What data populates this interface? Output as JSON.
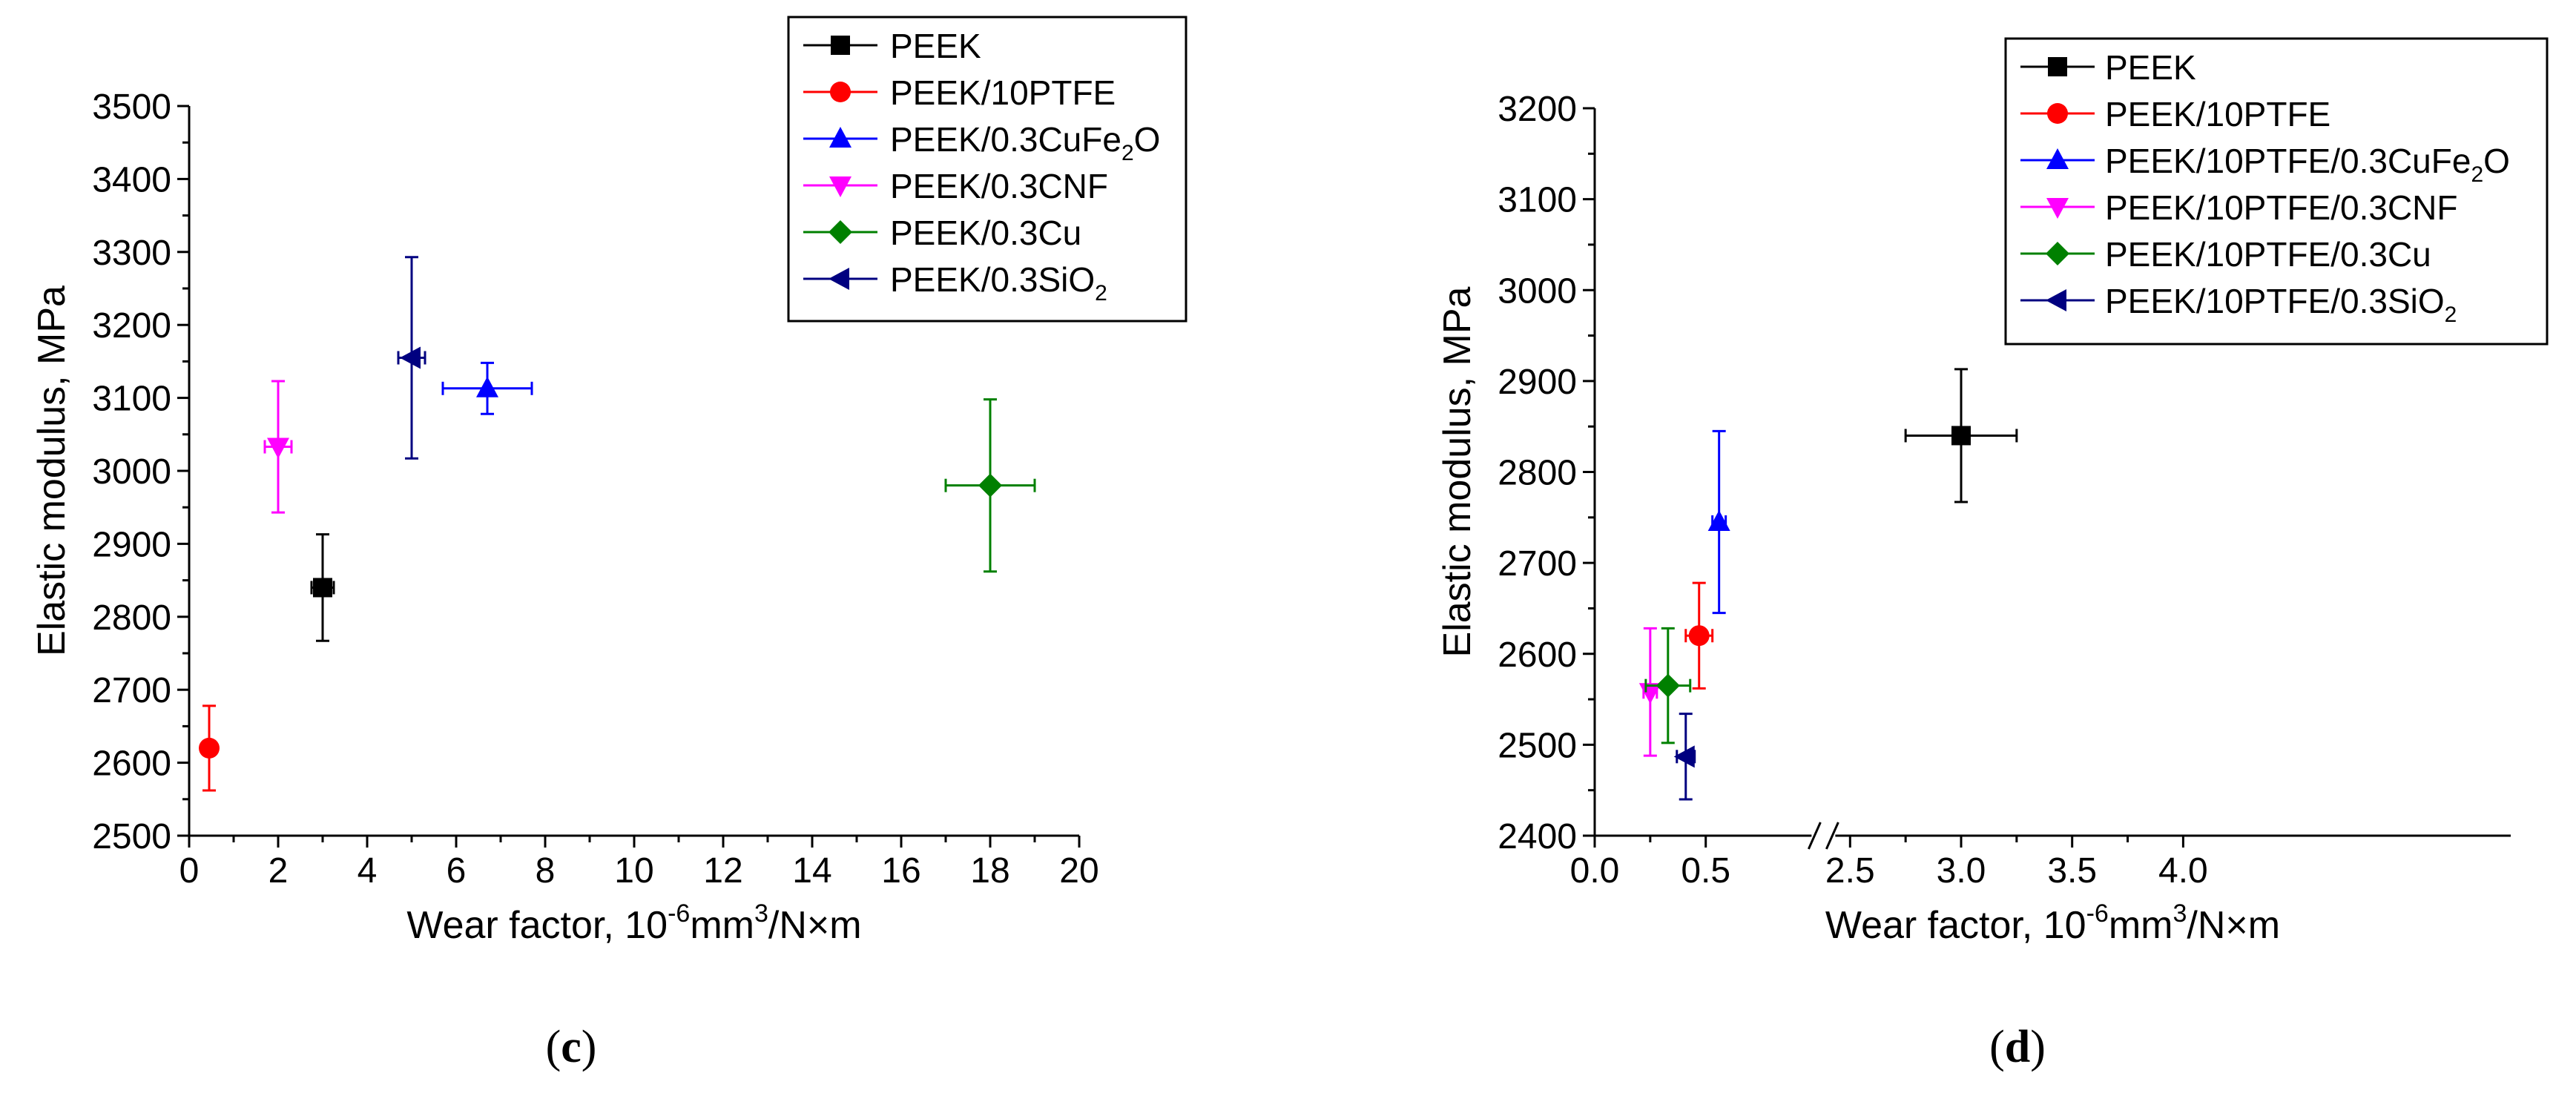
{
  "chart_data": [
    {
      "type": "scatter",
      "panel_label": "c",
      "xlabel": {
        "text": "Wear factor, 10",
        "sup": "-6",
        "mid": "mm",
        "sup2": "3",
        "tail": "/N×m"
      },
      "ylabel": "Elastic modulus, MPa",
      "xlim": [
        0,
        20
      ],
      "ylim": [
        2500,
        3500
      ],
      "xticks": [
        "0",
        "2",
        "4",
        "6",
        "8",
        "10",
        "12",
        "14",
        "16",
        "18",
        "20"
      ],
      "yticks": [
        "2500",
        "2600",
        "2700",
        "2800",
        "2900",
        "3000",
        "3100",
        "3200",
        "3300",
        "3400",
        "3500"
      ],
      "legend_position": "top-right",
      "series": [
        {
          "name": "PEEK",
          "name_parts": [
            "PEEK"
          ],
          "color": "#000000",
          "marker": "square",
          "x": 3.0,
          "y": 2840,
          "xerr": 0.25,
          "yerr": 73
        },
        {
          "name": "PEEK/10PTFE",
          "name_parts": [
            "PEEK/10PTFE"
          ],
          "color": "#ff0000",
          "marker": "circle",
          "x": 0.45,
          "y": 2620,
          "xerr": 0.05,
          "yerr": 58
        },
        {
          "name": "PEEK/0.3CuFe2O",
          "name_parts": [
            "PEEK/0.3CuFe",
            "2",
            "O"
          ],
          "color": "#0000ff",
          "marker": "triangle-up",
          "x": 6.7,
          "y": 3113,
          "xerr": 1.0,
          "yerr": 35
        },
        {
          "name": "PEEK/0.3CNF",
          "name_parts": [
            "PEEK/0.3CNF"
          ],
          "color": "#ff00ff",
          "marker": "triangle-down",
          "x": 2.0,
          "y": 3033,
          "xerr": 0.3,
          "yerr": 90
        },
        {
          "name": "PEEK/0.3Cu",
          "name_parts": [
            "PEEK/0.3Cu"
          ],
          "color": "#008000",
          "marker": "diamond",
          "x": 18.0,
          "y": 2980,
          "xerr": 1.0,
          "yerr": 118
        },
        {
          "name": "PEEK/0.3SiO2",
          "name_parts": [
            "PEEK/0.3SiO",
            "2",
            ""
          ],
          "color": "#000080",
          "marker": "triangle-left",
          "x": 5.0,
          "y": 3155,
          "xerr": 0.3,
          "yerr": 138
        }
      ]
    },
    {
      "type": "scatter",
      "panel_label": "d",
      "xlabel": {
        "text": "Wear factor, 10",
        "sup": "-6",
        "mid": "mm",
        "sup2": "3",
        "tail": "/N×m"
      },
      "ylabel": "Elastic modulus, MPa",
      "xlim": [
        0,
        4.0
      ],
      "x_axis_break": [
        0.9,
        2.5
      ],
      "ylim": [
        2400,
        3200
      ],
      "xticks": [
        "0.0",
        "0.5",
        "2.5",
        "3.0",
        "3.5",
        "4.0"
      ],
      "yticks": [
        "2400",
        "2500",
        "2600",
        "2700",
        "2800",
        "2900",
        "3000",
        "3100",
        "3200"
      ],
      "legend_position": "top-right",
      "series": [
        {
          "name": "PEEK",
          "name_parts": [
            "PEEK"
          ],
          "color": "#000000",
          "marker": "square",
          "x": 3.0,
          "y": 2840,
          "xerr": 0.25,
          "yerr": 73
        },
        {
          "name": "PEEK/10PTFE",
          "name_parts": [
            "PEEK/10PTFE"
          ],
          "color": "#ff0000",
          "marker": "circle",
          "x": 0.47,
          "y": 2620,
          "xerr": 0.06,
          "yerr": 58
        },
        {
          "name": "PEEK/10PTFE/0.3CuFe2O",
          "name_parts": [
            "PEEK/10PTFE/0.3CuFe",
            "2",
            "O"
          ],
          "color": "#0000ff",
          "marker": "triangle-up",
          "x": 0.56,
          "y": 2745,
          "xerr": 0.03,
          "yerr": 100
        },
        {
          "name": "PEEK/10PTFE/0.3CNF",
          "name_parts": [
            "PEEK/10PTFE/0.3CNF"
          ],
          "color": "#ff00ff",
          "marker": "triangle-down",
          "x": 0.25,
          "y": 2558,
          "xerr": 0.03,
          "yerr": 70
        },
        {
          "name": "PEEK/10PTFE/0.3Cu",
          "name_parts": [
            "PEEK/10PTFE/0.3Cu"
          ],
          "color": "#008000",
          "marker": "diamond",
          "x": 0.33,
          "y": 2565,
          "xerr": 0.1,
          "yerr": 63
        },
        {
          "name": "PEEK/10PTFE/0.3SiO2",
          "name_parts": [
            "PEEK/10PTFE/0.3SiO",
            "2",
            ""
          ],
          "color": "#000080",
          "marker": "triangle-left",
          "x": 0.41,
          "y": 2487,
          "xerr": 0.04,
          "yerr": 47
        }
      ]
    }
  ]
}
